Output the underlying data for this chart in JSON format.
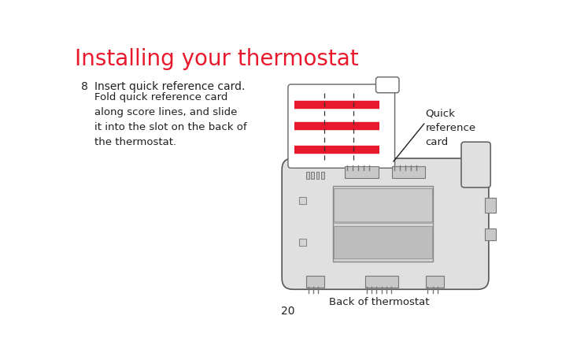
{
  "title": "Installing your thermostat",
  "title_color": "#e8192c",
  "title_fontsize": 20,
  "background_color": "#ffffff",
  "step_number": "8",
  "step_text_line1": "Insert quick reference card.",
  "step_body": "Fold quick reference card\nalong score lines, and slide\nit into the slot on the back of\nthe thermostat.",
  "label_quick_ref": "Quick\nreference\ncard",
  "label_back": "Back of thermostat",
  "page_number": "20",
  "text_color": "#231f20",
  "gray_outline": "#888888",
  "gray_light": "#d0d0d0",
  "gray_medium": "#b8b8b8",
  "red_color": "#e8192c",
  "dashed_color": "#444444"
}
